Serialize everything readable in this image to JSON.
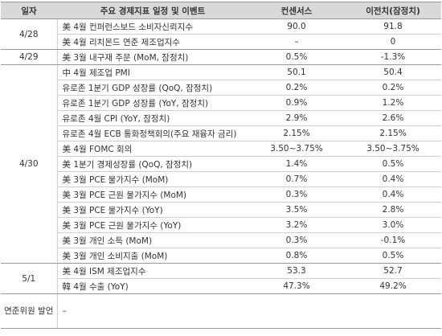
{
  "table": {
    "header": [
      "일자",
      "주요 경제지표 일정 및 이벤트",
      "컨센서스",
      "이전치(잠정치)"
    ],
    "groups": [
      {
        "date": "4/28",
        "rows": [
          [
            "美 4월 컨퍼런스보드 소비자신뢰지수",
            "90.0",
            "91.8"
          ],
          [
            "美 4월 리치몬드 연준 제조업지수",
            "–",
            "0"
          ]
        ]
      },
      {
        "date": "4/29",
        "rows": [
          [
            "美 3월 내구재 주문 (MoM, 잠정치)",
            "0.5%",
            "-1.3%"
          ]
        ]
      },
      {
        "date": "4/30",
        "rows": [
          [
            "中 4월 제조업 PMI",
            "50.1",
            "50.4"
          ],
          [
            "유로존 1분기 GDP 성장률 (QoQ, 잠정치)",
            "0.2%",
            "0.2%"
          ],
          [
            "유로존 1분기 GDP 성장률 (YoY, 잠정치)",
            "0.9%",
            "1.2%"
          ],
          [
            "유로존 4월 CPI (YoY, 잠정치)",
            "2.9%",
            "2.6%"
          ],
          [
            "유로존 4월 ECB 통화정책회의(주요 재융자 금리)",
            "2.15%",
            "2.15%"
          ],
          [
            "美 4월 FOMC 회의",
            "3.50~3.75%",
            "3.50~3.75%"
          ],
          [
            "美 1분기 경제성장률 (QoQ, 잠정치)",
            "1.4%",
            "0.5%"
          ],
          [
            "美 3월 PCE 물가지수 (MoM)",
            "0.7%",
            "0.4%"
          ],
          [
            "美 3월 PCE 근원 물가지수 (MoM)",
            "0.3%",
            "0.4%"
          ],
          [
            "美 3월 PCE 물가지수 (YoY)",
            "3.5%",
            "2.8%"
          ],
          [
            "美 3월 PCE 근원 물가지수 (YoY)",
            "3.2%",
            "3.0%"
          ],
          [
            "美 3월 개인 소득 (MoM)",
            "0.3%",
            "-0.1%"
          ],
          [
            "美 3월 개인 소비지출 (MoM)",
            "0.8%",
            "0.5%"
          ]
        ]
      },
      {
        "date": "5/1",
        "rows": [
          [
            "美 4월 ISM 제조업지수",
            "53.3",
            "52.7"
          ],
          [
            "韓 4월 수출 (YoY)",
            "47.3%",
            "49.2%"
          ]
        ]
      },
      {
        "date": "연준위원 발언",
        "rows": [
          [
            "–"
          ]
        ]
      }
    ]
  }
}
